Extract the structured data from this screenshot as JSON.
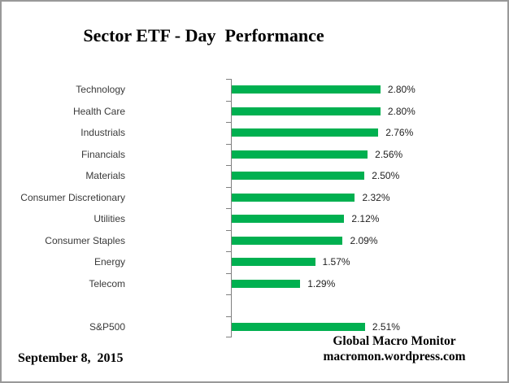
{
  "title": "Sector ETF - Day  Performance",
  "chart_data": {
    "type": "bar",
    "orientation": "horizontal",
    "title": "Sector ETF - Day  Performance",
    "xlabel": "",
    "ylabel": "",
    "grid": false,
    "legend": false,
    "xlim": [
      0,
      3.25
    ],
    "categories": [
      "Technology",
      "Health Care",
      "Industrials",
      "Financials",
      "Materials",
      "Consumer Discretionary",
      "Utilities",
      "Consumer Staples",
      "Energy",
      "Telecom",
      "",
      "S&P500"
    ],
    "values": [
      2.8,
      2.8,
      2.76,
      2.56,
      2.5,
      2.32,
      2.12,
      2.09,
      1.57,
      1.29,
      null,
      2.51
    ],
    "value_labels": [
      "2.80%",
      "2.80%",
      "2.76%",
      "2.56%",
      "2.50%",
      "2.32%",
      "2.12%",
      "2.09%",
      "1.57%",
      "1.29%",
      "",
      "2.51%"
    ],
    "bar_color": "#00B050",
    "axis_color": "#808080"
  },
  "footer": {
    "date": "September 8,  2015",
    "credit_line1": "Global Macro Monitor",
    "credit_line2": "macromon.wordpress.com"
  },
  "colors": {
    "bar": "#00B050",
    "axis": "#808080",
    "border": "#999999",
    "category_label": "#3a3a3a",
    "value_label": "#1f1f1f",
    "text": "#000000"
  }
}
